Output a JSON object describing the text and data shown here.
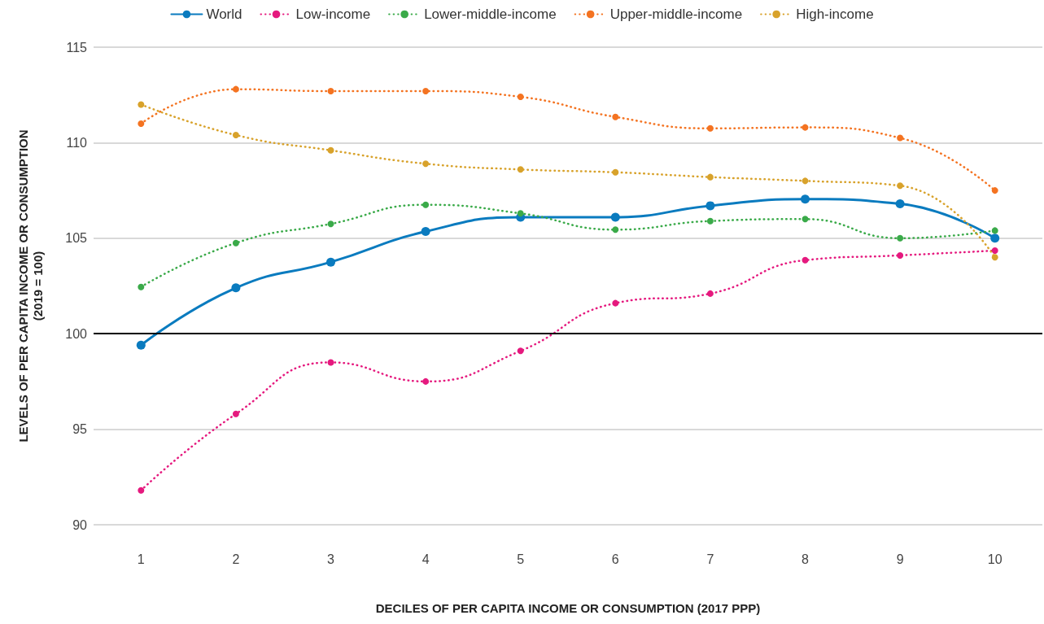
{
  "chart_data": {
    "type": "line",
    "xlabel": "DECILES OF PER CAPITA INCOME OR CONSUMPTION (2017 PPP)",
    "ylabel": "LEVELS OF PER CAPITA INCOME OR CONSUMPTION\n(2019 = 100)",
    "categories": [
      "1",
      "2",
      "3",
      "4",
      "5",
      "6",
      "7",
      "8",
      "9",
      "10"
    ],
    "series": [
      {
        "name": "World",
        "color": "#0a7bbf",
        "line_style": "solid",
        "values": [
          99.4,
          102.4,
          103.75,
          105.35,
          106.1,
          106.1,
          106.7,
          107.05,
          106.8,
          105.0
        ]
      },
      {
        "name": "Low-income",
        "color": "#e5197e",
        "line_style": "dotted",
        "values": [
          91.8,
          95.8,
          98.5,
          97.5,
          99.1,
          101.6,
          102.1,
          103.85,
          104.1,
          104.35
        ]
      },
      {
        "name": "Lower-middle-income",
        "color": "#3aaa49",
        "line_style": "dotted",
        "values": [
          102.45,
          104.75,
          105.75,
          106.75,
          106.3,
          105.45,
          105.9,
          106.0,
          105.0,
          105.4
        ]
      },
      {
        "name": "Upper-middle-income",
        "color": "#f47321",
        "line_style": "dotted",
        "values": [
          111.0,
          112.8,
          112.7,
          112.7,
          112.4,
          111.35,
          110.75,
          110.8,
          110.25,
          107.5
        ]
      },
      {
        "name": "High-income",
        "color": "#d8a22b",
        "line_style": "dotted",
        "values": [
          112.0,
          110.4,
          109.6,
          108.9,
          108.6,
          108.45,
          108.2,
          108.0,
          107.75,
          104.0
        ]
      }
    ],
    "ylim": [
      90,
      115
    ],
    "yticks": [
      90,
      95,
      100,
      105,
      110,
      115
    ],
    "ref_lines": [
      {
        "axis": "y",
        "value": 100,
        "color": "#000000"
      }
    ],
    "grid": "y",
    "legend": "top",
    "marker": "circle"
  }
}
